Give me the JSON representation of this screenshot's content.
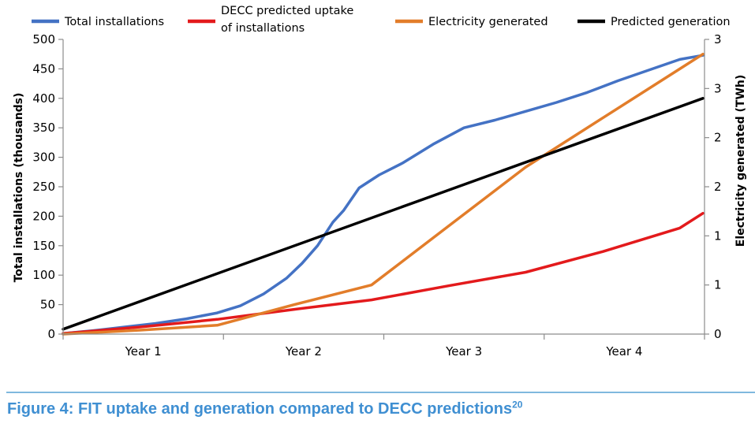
{
  "chart_data": {
    "type": "line",
    "x_categories": [
      "Year 1",
      "Year 2",
      "Year 3",
      "Year 4"
    ],
    "x_range": [
      0,
      4
    ],
    "y_left": {
      "label": "Total installations (thousands)",
      "range": [
        0,
        500
      ],
      "ticks": [
        "0",
        "50",
        "100",
        "150",
        "200",
        "250",
        "300",
        "350",
        "400",
        "450",
        "500"
      ]
    },
    "y_right": {
      "label": "Electricity generated (TWh)",
      "range": [
        0,
        3
      ],
      "ticks": [
        "0",
        "1",
        "1",
        "2",
        "2",
        "3",
        "3"
      ]
    },
    "grid": false,
    "legend_position": "top",
    "series": [
      {
        "name": "Total installations",
        "color": "#4472c4",
        "axis": "left",
        "points": [
          [
            0.0,
            1
          ],
          [
            0.2,
            6
          ],
          [
            0.4,
            12
          ],
          [
            0.6,
            18
          ],
          [
            0.8,
            26
          ],
          [
            1.0,
            36
          ],
          [
            1.15,
            48
          ],
          [
            1.3,
            68
          ],
          [
            1.45,
            95
          ],
          [
            1.55,
            120
          ],
          [
            1.65,
            150
          ],
          [
            1.75,
            190
          ],
          [
            1.82,
            210
          ],
          [
            1.92,
            248
          ],
          [
            2.05,
            270
          ],
          [
            2.2,
            290
          ],
          [
            2.4,
            322
          ],
          [
            2.6,
            350
          ],
          [
            2.8,
            363
          ],
          [
            3.0,
            378
          ],
          [
            3.2,
            393
          ],
          [
            3.4,
            410
          ],
          [
            3.6,
            430
          ],
          [
            3.8,
            448
          ],
          [
            4.0,
            466
          ],
          [
            4.15,
            473
          ]
        ]
      },
      {
        "name": "DECC predicted uptake of installations",
        "color": "#e31a1c",
        "axis": "left",
        "points": [
          [
            0.0,
            1
          ],
          [
            0.5,
            12
          ],
          [
            1.0,
            25
          ],
          [
            1.5,
            42
          ],
          [
            2.0,
            58
          ],
          [
            2.5,
            82
          ],
          [
            3.0,
            105
          ],
          [
            3.5,
            140
          ],
          [
            4.0,
            180
          ],
          [
            4.15,
            205
          ]
        ]
      },
      {
        "name": "Electricity generated",
        "color": "#e27d2a",
        "axis": "right",
        "points": [
          [
            0.0,
            0.0
          ],
          [
            0.5,
            0.04
          ],
          [
            1.0,
            0.09
          ],
          [
            1.5,
            0.3
          ],
          [
            2.0,
            0.5
          ],
          [
            2.5,
            1.1
          ],
          [
            3.0,
            1.7
          ],
          [
            3.5,
            2.2
          ],
          [
            4.0,
            2.7
          ],
          [
            4.15,
            2.85
          ]
        ]
      },
      {
        "name": "Predicted generation",
        "color": "#000000",
        "axis": "right",
        "points": [
          [
            0.0,
            0.05
          ],
          [
            4.15,
            2.4
          ]
        ]
      }
    ],
    "caption": "Figure 4: FIT uptake and generation compared to DECC predictions",
    "caption_superscript": "20"
  },
  "legend": [
    {
      "lines": [
        "Total installations"
      ],
      "color": "#4472c4"
    },
    {
      "lines": [
        "DECC predicted uptake",
        "of installations"
      ],
      "color": "#e31a1c"
    },
    {
      "lines": [
        "Electricity generated"
      ],
      "color": "#e27d2a"
    },
    {
      "lines": [
        "Predicted generation"
      ],
      "color": "#000000"
    }
  ]
}
